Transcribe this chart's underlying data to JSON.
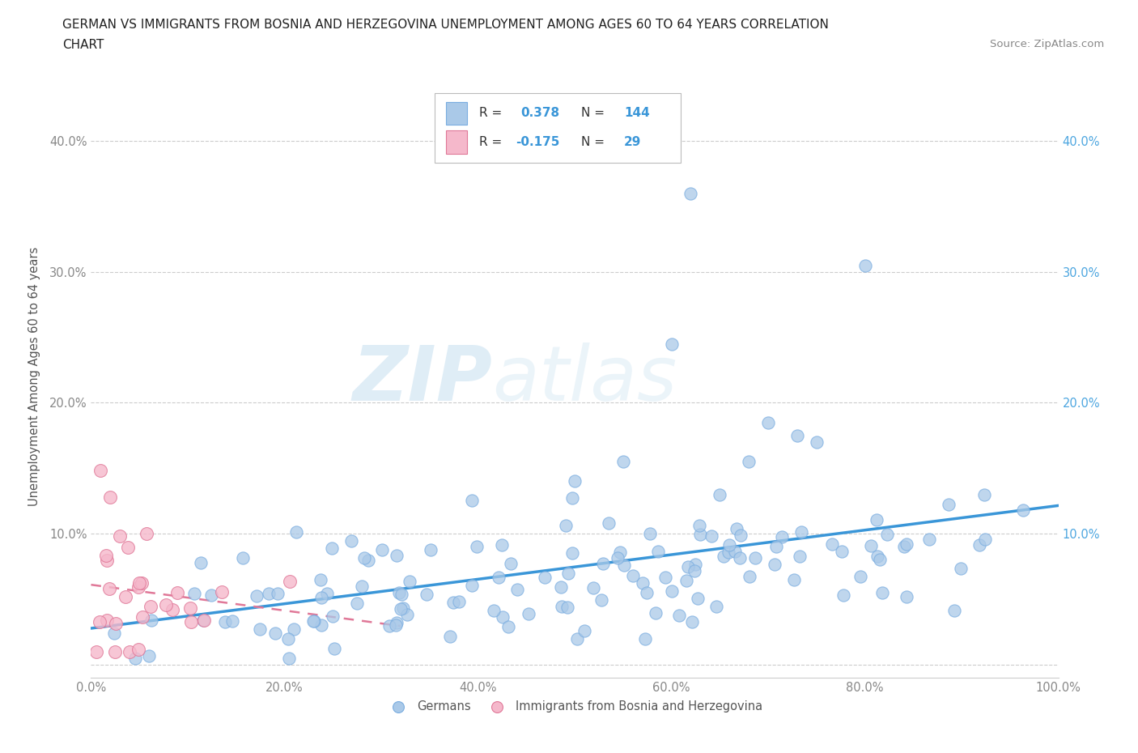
{
  "title_line1": "GERMAN VS IMMIGRANTS FROM BOSNIA AND HERZEGOVINA UNEMPLOYMENT AMONG AGES 60 TO 64 YEARS CORRELATION",
  "title_line2": "CHART",
  "source": "Source: ZipAtlas.com",
  "ylabel": "Unemployment Among Ages 60 to 64 years",
  "xlim": [
    0.0,
    1.0
  ],
  "ylim": [
    -0.01,
    0.45
  ],
  "german_color": "#aac9e8",
  "german_edge_color": "#7aade0",
  "bosnian_color": "#f5b8cb",
  "bosnian_edge_color": "#e07898",
  "german_R": 0.378,
  "german_N": 144,
  "bosnian_R": -0.175,
  "bosnian_N": 29,
  "german_line_color": "#3a96d8",
  "bosnian_line_color": "#e07898",
  "watermark_zip": "ZIP",
  "watermark_atlas": "atlas",
  "grid_color": "#cccccc",
  "title_color": "#222222",
  "tick_color": "#888888",
  "right_tick_color": "#4da6e0",
  "source_color": "#888888"
}
